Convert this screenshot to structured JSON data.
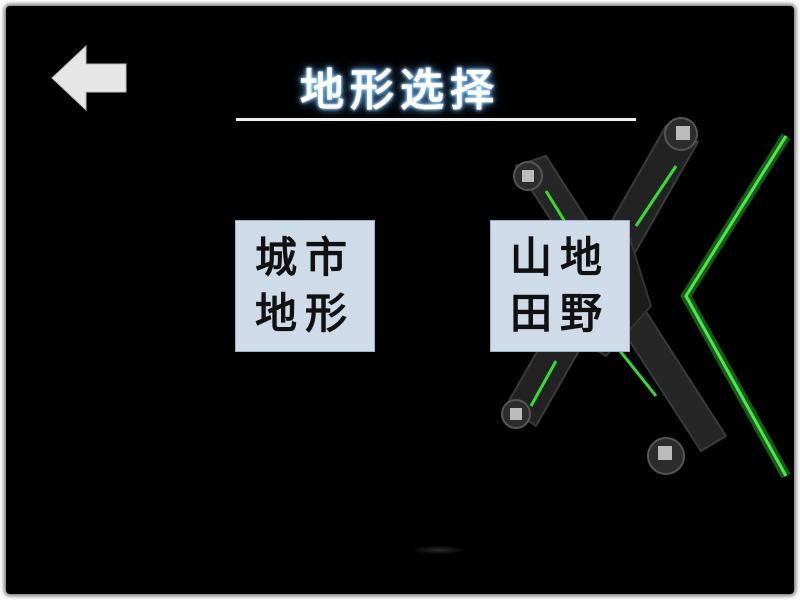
{
  "header": {
    "title": "地形选择",
    "back_icon": "back-arrow-icon"
  },
  "tiles": [
    {
      "id": "city",
      "line1": "城市",
      "line2": "地形"
    },
    {
      "id": "mountain",
      "line1": "山地",
      "line2": "田野"
    }
  ],
  "colors": {
    "background": "#000000",
    "tile_bg": "#cfdbe8",
    "title_glow": "#5aaeff",
    "accent_green": "#33dd33"
  },
  "decor": {
    "drone_icon": "drone-image"
  }
}
